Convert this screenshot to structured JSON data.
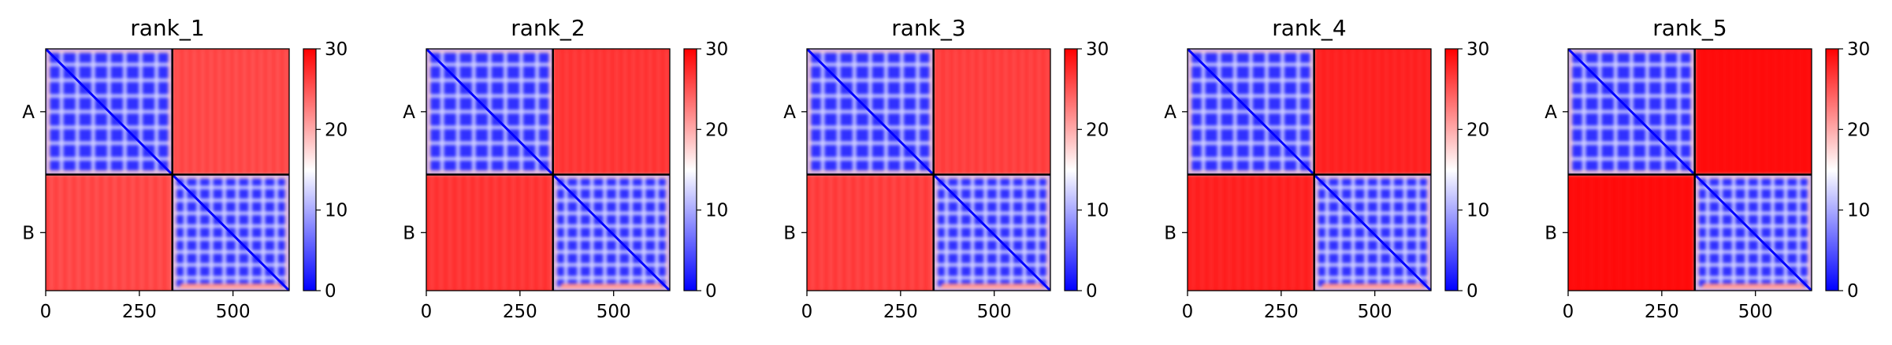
{
  "chart_data": {
    "type": "heatmap",
    "colormap": {
      "name": "bwr",
      "low": "#0000ff",
      "mid": "#ffffff",
      "high": "#ff0000",
      "vmin": 0,
      "vmax": 30
    },
    "matrix_size": 650,
    "chain_boundary": 338,
    "x_ticks": [
      0,
      250,
      500
    ],
    "x_tick_labels": [
      "0",
      "250",
      "500"
    ],
    "y_tick_labels": [
      "A",
      "B"
    ],
    "colorbar_ticks": [
      0,
      10,
      20,
      30
    ],
    "colorbar_tick_labels": [
      "0",
      "10",
      "20",
      "30"
    ],
    "panels": [
      {
        "title": "rank_1",
        "interchain_error": 26.5
      },
      {
        "title": "rank_2",
        "interchain_error": 27.5
      },
      {
        "title": "rank_3",
        "interchain_error": 27.0
      },
      {
        "title": "rank_4",
        "interchain_error": 28.5
      },
      {
        "title": "rank_5",
        "interchain_error": 29.5
      }
    ]
  }
}
